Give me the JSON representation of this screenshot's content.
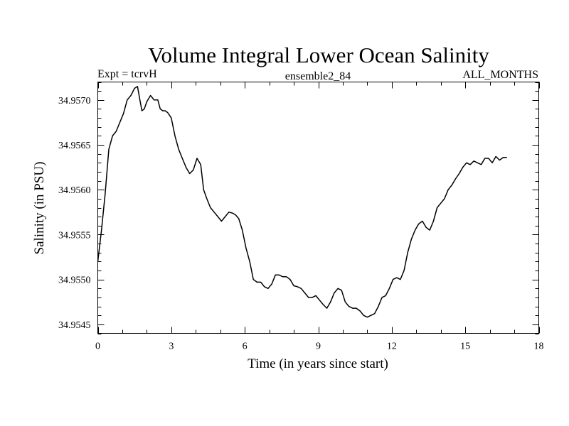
{
  "chart_data": {
    "type": "line",
    "title": "Volume Integral Lower Ocean Salinity",
    "subtitle_left": "Expt = tcrvH",
    "subtitle_center": "ensemble2_84",
    "subtitle_right": "ALL_MONTHS",
    "xlabel": "Time (in years since start)",
    "ylabel": "Salinity (in PSU)",
    "xlim": [
      0,
      18
    ],
    "ylim": [
      34.9544,
      34.9572
    ],
    "xticks": [
      0,
      3,
      6,
      9,
      12,
      15,
      18
    ],
    "xtick_labels": [
      "0",
      "3",
      "6",
      "9",
      "12",
      "15",
      "18"
    ],
    "yticks": [
      34.9545,
      34.955,
      34.9555,
      34.956,
      34.9565,
      34.957
    ],
    "ytick_labels": [
      "34.9545",
      "34.9550",
      "34.9555",
      "34.9560",
      "34.9565",
      "34.9570"
    ],
    "grid": false,
    "series": [
      {
        "name": "Salinity",
        "color": "#000000",
        "x": [
          0,
          0.15,
          0.3,
          0.45,
          0.6,
          0.75,
          0.9,
          1.05,
          1.2,
          1.35,
          1.5,
          1.62,
          1.72,
          1.8,
          1.9,
          2.0,
          2.15,
          2.3,
          2.45,
          2.55,
          2.65,
          2.75,
          2.85,
          3.0,
          3.15,
          3.3,
          3.45,
          3.6,
          3.75,
          3.9,
          4.05,
          4.2,
          4.32,
          4.45,
          4.6,
          4.75,
          4.9,
          5.05,
          5.2,
          5.35,
          5.5,
          5.62,
          5.75,
          5.9,
          6.05,
          6.2,
          6.35,
          6.5,
          6.65,
          6.8,
          6.95,
          7.1,
          7.25,
          7.4,
          7.55,
          7.7,
          7.85,
          8.0,
          8.15,
          8.3,
          8.45,
          8.6,
          8.75,
          8.9,
          9.05,
          9.2,
          9.35,
          9.5,
          9.65,
          9.8,
          9.95,
          10.1,
          10.25,
          10.4,
          10.55,
          10.7,
          10.85,
          11.0,
          11.15,
          11.3,
          11.45,
          11.6,
          11.75,
          11.9,
          12.05,
          12.2,
          12.35,
          12.5,
          12.65,
          12.8,
          12.95,
          13.1,
          13.25,
          13.4,
          13.55,
          13.7,
          13.85,
          14.0,
          14.15,
          14.3,
          14.45,
          14.6,
          14.75,
          14.9,
          15.05,
          15.2,
          15.35,
          15.5,
          15.65,
          15.8,
          15.95,
          16.1,
          16.25,
          16.4,
          16.55,
          16.7
        ],
        "values": [
          34.9552,
          34.95555,
          34.95595,
          34.95645,
          34.9566,
          34.95665,
          34.95675,
          34.95685,
          34.957,
          34.95705,
          34.95713,
          34.95715,
          34.957,
          34.95688,
          34.9569,
          34.95698,
          34.95705,
          34.957,
          34.957,
          34.9569,
          34.95688,
          34.95688,
          34.95686,
          34.9568,
          34.9566,
          34.95645,
          34.95635,
          34.95625,
          34.95618,
          34.95622,
          34.95635,
          34.95628,
          34.956,
          34.9559,
          34.9558,
          34.95575,
          34.9557,
          34.95565,
          34.9557,
          34.95575,
          34.95574,
          34.95572,
          34.95568,
          34.95555,
          34.95535,
          34.9552,
          34.955,
          34.95497,
          34.95497,
          34.95492,
          34.9549,
          34.95495,
          34.95505,
          34.95505,
          34.95503,
          34.95503,
          34.955,
          34.95493,
          34.95492,
          34.9549,
          34.95485,
          34.9548,
          34.9548,
          34.95482,
          34.95477,
          34.95472,
          34.95468,
          34.95475,
          34.95485,
          34.9549,
          34.95488,
          34.95475,
          34.9547,
          34.95468,
          34.95468,
          34.95465,
          34.9546,
          34.95458,
          34.9546,
          34.95462,
          34.9547,
          34.9548,
          34.95482,
          34.9549,
          34.955,
          34.95502,
          34.955,
          34.9551,
          34.9553,
          34.95545,
          34.95555,
          34.95562,
          34.95565,
          34.95558,
          34.95555,
          34.95565,
          34.9558,
          34.95585,
          34.9559,
          34.956,
          34.95605,
          34.95612,
          34.95618,
          34.95625,
          34.9563,
          34.95628,
          34.95632,
          34.9563,
          34.95628,
          34.95635,
          34.95635,
          34.9563,
          34.95637,
          34.95633,
          34.95636,
          34.95636
        ]
      }
    ]
  }
}
